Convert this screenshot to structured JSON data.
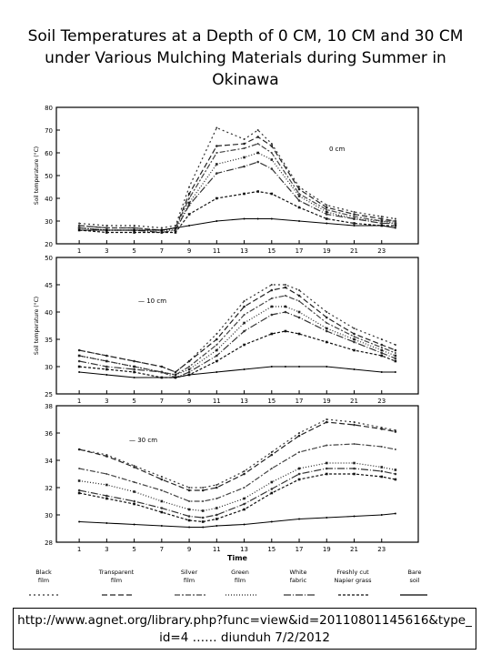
{
  "title": {
    "line1": "Soil Temperatures at a Depth of 0 CM, 10 CM and 30 CM",
    "line2": "under Various Mulching Materials during Summer in",
    "line3": "Okinawa"
  },
  "source": {
    "line1": "http://www.agnet.org/library.php?func=view&id=20110801145616&type_",
    "line2": "id=4 ……   diunduh 7/2/2012"
  },
  "figure_xlabel": "Time",
  "legend": [
    {
      "label": "Black film",
      "dash": "2,3",
      "color": "#333333"
    },
    {
      "label": "Transparent film",
      "dash": "6,3",
      "color": "#222222"
    },
    {
      "label": "Silver film",
      "dash": "6,2,2,2",
      "color": "#444444"
    },
    {
      "label": "Green film",
      "dash": "1,2",
      "color": "#222222"
    },
    {
      "label": "White fabric",
      "dash": "8,2,1,2",
      "color": "#333333"
    },
    {
      "label": "Freshly cut Napier grass",
      "dash": "3,2",
      "color": "#111111"
    },
    {
      "label": "Bare soil",
      "dash": "",
      "color": "#000000"
    }
  ],
  "chart_data": [
    {
      "type": "line",
      "annotation": "0 cm",
      "ylabel": "Soil temperature (°C)",
      "xlabel": "",
      "ylim": [
        20,
        80
      ],
      "yticks": [
        20,
        30,
        40,
        50,
        60,
        70,
        80
      ],
      "xlim": [
        0,
        25
      ],
      "xticks": [
        1,
        3,
        5,
        7,
        9,
        11,
        13,
        15,
        17,
        19,
        21,
        23
      ],
      "x": [
        1,
        3,
        5,
        7,
        8,
        9,
        11,
        13,
        14,
        15,
        17,
        19,
        21,
        23,
        24
      ],
      "series": [
        {
          "values": [
            29,
            28,
            28,
            27,
            28,
            45,
            71,
            66,
            70,
            64,
            45,
            37,
            34,
            32,
            31
          ]
        },
        {
          "values": [
            28,
            27,
            27,
            26,
            27,
            42,
            63,
            64,
            67,
            63,
            44,
            36,
            33,
            31,
            30
          ]
        },
        {
          "values": [
            28,
            27,
            27,
            26,
            27,
            40,
            60,
            62,
            64,
            60,
            42,
            35,
            32,
            30,
            30
          ]
        },
        {
          "values": [
            27,
            26,
            26,
            26,
            26,
            38,
            55,
            58,
            60,
            57,
            41,
            34,
            31,
            30,
            29
          ]
        },
        {
          "values": [
            27,
            26,
            26,
            25,
            26,
            37,
            51,
            54,
            56,
            53,
            39,
            33,
            31,
            29,
            29
          ]
        },
        {
          "values": [
            26,
            25,
            25,
            25,
            25,
            33,
            40,
            42,
            43,
            42,
            36,
            31,
            29,
            28,
            28
          ]
        },
        {
          "values": [
            26,
            26,
            26,
            26,
            27,
            28,
            30,
            31,
            31,
            31,
            30,
            29,
            28,
            28,
            27
          ]
        }
      ]
    },
    {
      "type": "line",
      "annotation": "10 cm",
      "ylabel": "Soil temperature (°C)",
      "xlabel": "",
      "ylim": [
        25,
        50
      ],
      "yticks": [
        25,
        30,
        35,
        40,
        45,
        50
      ],
      "xlim": [
        0,
        25
      ],
      "xticks": [
        1,
        3,
        5,
        7,
        9,
        11,
        13,
        15,
        17,
        19,
        21,
        23
      ],
      "x": [
        1,
        3,
        5,
        7,
        8,
        9,
        11,
        13,
        15,
        16,
        17,
        19,
        21,
        23,
        24
      ],
      "series": [
        {
          "values": [
            33,
            32,
            31,
            30,
            29,
            31,
            36,
            42,
            45,
            45,
            44,
            40,
            37,
            35,
            34
          ]
        },
        {
          "values": [
            33,
            32,
            31,
            30,
            29,
            31,
            35,
            41,
            44,
            44.5,
            43,
            39,
            36,
            34,
            33
          ]
        },
        {
          "values": [
            32,
            31,
            30,
            29,
            28.5,
            30,
            34,
            39.5,
            42.5,
            43,
            42,
            38,
            35.5,
            33.5,
            32.5
          ]
        },
        {
          "values": [
            32,
            31,
            30,
            29,
            28.5,
            29.5,
            33,
            38,
            41,
            41,
            40,
            37,
            35,
            33,
            32
          ]
        },
        {
          "values": [
            31,
            30,
            29.5,
            29,
            28,
            29,
            32,
            36.5,
            39.5,
            40,
            39,
            36.5,
            34.5,
            32.5,
            31.5
          ]
        },
        {
          "values": [
            30,
            29.5,
            29,
            28,
            28,
            28.5,
            31,
            34,
            36,
            36.5,
            36,
            34.5,
            33,
            32,
            31
          ]
        },
        {
          "values": [
            29,
            28.5,
            28,
            28,
            28,
            28.5,
            29,
            29.5,
            30,
            30,
            30,
            30,
            29.5,
            29,
            29
          ]
        }
      ]
    },
    {
      "type": "line",
      "annotation": "30 cm",
      "ylabel": "",
      "xlabel": "Time",
      "ylim": [
        28,
        38
      ],
      "yticks": [
        28,
        30,
        32,
        34,
        36,
        38
      ],
      "xlim": [
        0,
        25
      ],
      "xticks": [
        1,
        3,
        5,
        7,
        9,
        11,
        13,
        15,
        17,
        19,
        21,
        23
      ],
      "x": [
        1,
        3,
        5,
        7,
        9,
        10,
        11,
        13,
        15,
        17,
        19,
        21,
        23,
        24
      ],
      "series": [
        {
          "values": [
            34.8,
            34.4,
            33.6,
            32.8,
            32.0,
            32.0,
            32.2,
            33.2,
            34.6,
            36.0,
            37.0,
            36.8,
            36.4,
            36.2
          ]
        },
        {
          "values": [
            34.8,
            34.3,
            33.5,
            32.6,
            31.8,
            31.8,
            32.0,
            33.0,
            34.4,
            35.8,
            36.8,
            36.6,
            36.3,
            36.1
          ]
        },
        {
          "values": [
            33.4,
            33.0,
            32.4,
            31.8,
            31.0,
            31.0,
            31.2,
            32.0,
            33.4,
            34.6,
            35.1,
            35.2,
            35.0,
            34.8
          ]
        },
        {
          "values": [
            32.5,
            32.2,
            31.7,
            31.0,
            30.4,
            30.3,
            30.5,
            31.2,
            32.4,
            33.4,
            33.8,
            33.8,
            33.5,
            33.3
          ]
        },
        {
          "values": [
            31.8,
            31.4,
            31.0,
            30.5,
            29.9,
            29.8,
            30.0,
            30.8,
            31.9,
            33.0,
            33.4,
            33.4,
            33.2,
            33.0
          ]
        },
        {
          "values": [
            31.6,
            31.2,
            30.8,
            30.2,
            29.6,
            29.5,
            29.7,
            30.4,
            31.6,
            32.6,
            33.0,
            33.0,
            32.8,
            32.6
          ]
        },
        {
          "values": [
            29.5,
            29.4,
            29.3,
            29.2,
            29.1,
            29.1,
            29.2,
            29.3,
            29.5,
            29.7,
            29.8,
            29.9,
            30.0,
            30.1
          ]
        }
      ]
    }
  ]
}
